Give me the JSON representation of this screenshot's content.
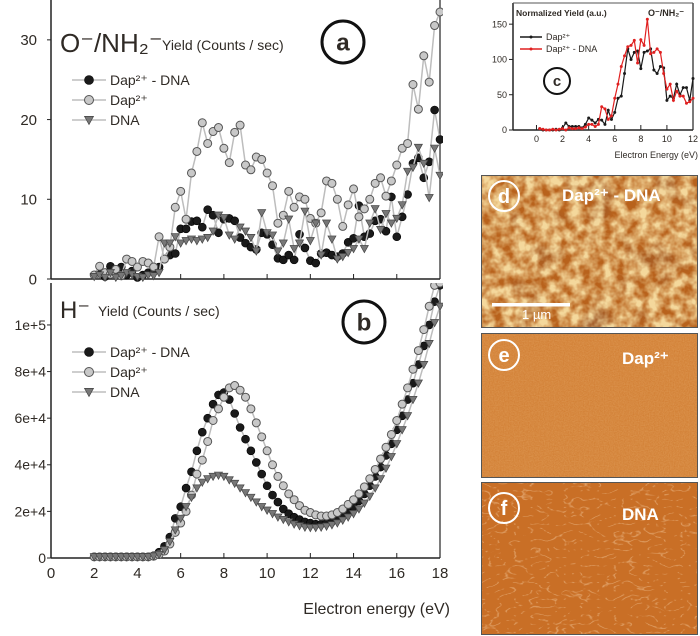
{
  "chart_data": [
    {
      "id": "a",
      "type": "scatter",
      "panel_label": "a",
      "title": "O⁻/NH₂⁻",
      "ylabel": "Yield (Counts / sec)",
      "xlim": [
        0,
        18
      ],
      "ylim": [
        0,
        35
      ],
      "yticks": [
        0,
        10,
        20,
        30
      ],
      "ytick_labels": [
        "0",
        "10",
        "20",
        "30"
      ],
      "legend_position": "upper-left",
      "x": [
        2,
        2.25,
        2.5,
        2.75,
        3,
        3.25,
        3.5,
        3.75,
        4,
        4.25,
        4.5,
        4.75,
        5,
        5.25,
        5.5,
        5.75,
        6,
        6.25,
        6.5,
        6.75,
        7,
        7.25,
        7.5,
        7.75,
        8,
        8.25,
        8.5,
        8.75,
        9,
        9.25,
        9.5,
        9.75,
        10,
        10.25,
        10.5,
        10.75,
        11,
        11.25,
        11.5,
        11.75,
        12,
        12.25,
        12.5,
        12.75,
        13,
        13.25,
        13.5,
        13.75,
        14,
        14.25,
        14.5,
        14.75,
        15,
        15.25,
        15.5,
        15.75,
        16,
        16.25,
        16.5,
        16.75,
        17,
        17.25,
        17.5,
        17.75,
        18
      ],
      "series": [
        {
          "name": "Dap²⁺ - DNA",
          "marker": "filled-circle",
          "color": "#1a1a1a",
          "values": [
            0.5,
            0.8,
            0.3,
            1.6,
            0.6,
            1.5,
            0.5,
            1.0,
            0.2,
            0.5,
            0.8,
            1.0,
            1.5,
            2.5,
            3.0,
            3.2,
            6.3,
            6.3,
            7.2,
            7.3,
            6.5,
            8.7,
            8.0,
            5.8,
            7.5,
            7.6,
            7.3,
            5.2,
            4.5,
            4.0,
            3.7,
            5.8,
            5.6,
            4.3,
            2.6,
            2.4,
            3.0,
            2.4,
            5.6,
            3.9,
            2.3,
            2.0,
            3.2,
            3.3,
            3.0,
            2.8,
            3.2,
            4.6,
            5.1,
            9.2,
            5.3,
            5.7,
            7.3,
            7.5,
            6.0,
            10.3,
            5.3,
            7.8,
            10.6,
            14.5,
            15.2,
            12.7,
            14.7,
            21.2,
            17.5
          ]
        },
        {
          "name": "Dap²⁺",
          "marker": "open-circle",
          "color": "#c8c8c8",
          "values": [
            0.5,
            1.6,
            0.8,
            0.6,
            1.2,
            0.4,
            2.5,
            2.2,
            1.5,
            2.2,
            2.0,
            1.5,
            5.3,
            2.5,
            4.0,
            9.0,
            11.0,
            7.5,
            13.3,
            16.0,
            19.6,
            17.0,
            18.5,
            19.0,
            16.4,
            14.6,
            18.4,
            19.3,
            14.3,
            13.7,
            15.3,
            15.0,
            13.3,
            11.7,
            7.0,
            8.0,
            11.0,
            9.0,
            10.3,
            10.0,
            7.6,
            7.0,
            8.3,
            12.3,
            12.0,
            10.0,
            6.6,
            9.3,
            11.3,
            7.8,
            8.8,
            10.0,
            12.0,
            12.7,
            10.4,
            12.3,
            14.3,
            16.4,
            17.0,
            24.4,
            21.3,
            28.0,
            24.7,
            31.8,
            33.5
          ]
        },
        {
          "name": "DNA",
          "marker": "down-triangle",
          "color": "#777777",
          "values": [
            0.3,
            0.5,
            0.2,
            0.8,
            0.2,
            0.4,
            0.8,
            0.6,
            0.3,
            0.2,
            0.5,
            0.4,
            0.8,
            4.5,
            4.5,
            5.3,
            4.5,
            4.8,
            5.0,
            4.8,
            5.0,
            5.2,
            6.0,
            8.0,
            7.7,
            5.5,
            5.0,
            6.5,
            6.0,
            5.2,
            3.5,
            8.3,
            5.8,
            5.5,
            3.5,
            4.5,
            7.5,
            3.8,
            4.5,
            8.5,
            4.8,
            7.0,
            3.0,
            7.0,
            5.0,
            2.5,
            2.8,
            3.3,
            3.8,
            5.0,
            3.8,
            7.0,
            8.8,
            6.2,
            8.2,
            7.0,
            7.6,
            9.3,
            13.5,
            14.0,
            16.5,
            14.5,
            10.2,
            16.4,
            13.0
          ]
        }
      ]
    },
    {
      "id": "b",
      "type": "scatter",
      "panel_label": "b",
      "title": "H⁻",
      "ylabel": "Yield (Counts / sec)",
      "xlabel": "Electron energy (eV)",
      "xlim": [
        0,
        18
      ],
      "ylim": [
        0,
        118000
      ],
      "xticks": [
        0,
        2,
        4,
        6,
        8,
        10,
        12,
        14,
        16,
        18
      ],
      "xtick_labels": [
        "0",
        "2",
        "4",
        "6",
        "8",
        "10",
        "12",
        "14",
        "16",
        "18"
      ],
      "yticks": [
        0,
        20000,
        40000,
        60000,
        80000,
        100000
      ],
      "ytick_labels": [
        "0",
        "2e+4",
        "4e+4",
        "6e+4",
        "8e+4",
        "1e+5"
      ],
      "legend_position": "upper-left",
      "x": [
        2,
        2.25,
        2.5,
        2.75,
        3,
        3.25,
        3.5,
        3.75,
        4,
        4.25,
        4.5,
        4.75,
        5,
        5.25,
        5.5,
        5.75,
        6,
        6.25,
        6.5,
        6.75,
        7,
        7.25,
        7.5,
        7.75,
        8,
        8.25,
        8.5,
        8.75,
        9,
        9.25,
        9.5,
        9.75,
        10,
        10.25,
        10.5,
        10.75,
        11,
        11.25,
        11.5,
        11.75,
        12,
        12.25,
        12.5,
        12.75,
        13,
        13.25,
        13.5,
        13.75,
        14,
        14.25,
        14.5,
        14.75,
        15,
        15.25,
        15.5,
        15.75,
        16,
        16.25,
        16.5,
        16.75,
        17,
        17.25,
        17.5,
        17.75,
        18
      ],
      "series": [
        {
          "name": "Dap²⁺ - DNA",
          "marker": "filled-circle",
          "color": "#1a1a1a",
          "values": [
            500,
            500,
            500,
            500,
            500,
            500,
            500,
            500,
            500,
            500,
            500,
            1000,
            2500,
            5000,
            9000,
            17000,
            22000,
            30000,
            37000,
            46000,
            54000,
            60000,
            66000,
            70000,
            71000,
            68000,
            62000,
            56000,
            51000,
            46000,
            41000,
            36000,
            31000,
            27000,
            24000,
            21000,
            19000,
            17500,
            16500,
            15500,
            15000,
            14500,
            14500,
            15000,
            15500,
            16500,
            18000,
            20000,
            22000,
            24500,
            27500,
            31000,
            35000,
            39000,
            44000,
            49000,
            55000,
            61000,
            68000,
            75000,
            83000,
            91000,
            100000,
            110000,
            117000
          ]
        },
        {
          "name": "Dap²⁺",
          "marker": "open-circle",
          "color": "#c8c8c8",
          "values": [
            500,
            500,
            500,
            500,
            500,
            500,
            500,
            500,
            500,
            500,
            500,
            800,
            1500,
            3000,
            6000,
            11000,
            15000,
            20000,
            27000,
            36000,
            42000,
            50000,
            59000,
            64000,
            69000,
            73000,
            74000,
            72000,
            69000,
            64000,
            58000,
            52000,
            46000,
            40000,
            35000,
            31000,
            27500,
            25000,
            22500,
            20500,
            19500,
            18500,
            18000,
            18000,
            18500,
            19500,
            21000,
            23000,
            25000,
            27500,
            30500,
            34000,
            38000,
            42500,
            47500,
            53000,
            59000,
            66000,
            73000,
            81000,
            89000,
            98000,
            108000,
            117000,
            118000
          ]
        },
        {
          "name": "DNA",
          "marker": "down-triangle",
          "color": "#777777",
          "values": [
            500,
            500,
            500,
            500,
            500,
            500,
            500,
            500,
            500,
            500,
            500,
            800,
            1500,
            3500,
            7000,
            12000,
            17000,
            22000,
            26000,
            30000,
            32500,
            34000,
            35000,
            35500,
            35000,
            33500,
            32000,
            30000,
            28000,
            26000,
            24000,
            22000,
            20500,
            19000,
            17500,
            16500,
            15500,
            14500,
            13800,
            13200,
            13000,
            13000,
            13200,
            13600,
            14200,
            15000,
            16200,
            17500,
            19000,
            21000,
            23500,
            26500,
            30000,
            34000,
            38500,
            43500,
            49000,
            55000,
            61000,
            68000,
            75000,
            83000,
            92000,
            101000,
            108000
          ]
        }
      ]
    },
    {
      "id": "c",
      "type": "line",
      "panel_label": "c",
      "title": "O⁻/NH₂⁻",
      "ylabel": "Normalized Yield (a.u.)",
      "xlabel": "Electron Energy (eV)",
      "xlim": [
        -1.8,
        12
      ],
      "ylim": [
        0,
        180
      ],
      "xticks": [
        0,
        2,
        4,
        6,
        8,
        10,
        12
      ],
      "xtick_labels": [
        "0",
        "2",
        "4",
        "6",
        "8",
        "10",
        "12"
      ],
      "yticks": [
        0,
        50,
        100,
        150
      ],
      "ytick_labels": [
        "0",
        "50",
        "100",
        "150"
      ],
      "legend_position": "upper-left",
      "x": [
        0.25,
        0.5,
        0.75,
        1,
        1.25,
        1.5,
        1.75,
        2,
        2.25,
        2.5,
        2.75,
        3,
        3.25,
        3.5,
        3.75,
        4,
        4.25,
        4.5,
        4.75,
        5,
        5.25,
        5.5,
        5.75,
        6,
        6.25,
        6.5,
        6.75,
        7,
        7.25,
        7.5,
        7.75,
        8,
        8.25,
        8.5,
        8.75,
        9,
        9.25,
        9.5,
        9.75,
        10,
        10.25,
        10.5,
        10.75,
        11,
        11.25,
        11.5,
        11.75,
        12
      ],
      "series": [
        {
          "name": "Dap²⁺",
          "marker": "small-dot",
          "color": "#1a1a1a",
          "values": [
            2,
            0,
            0,
            0,
            0,
            1,
            0,
            3,
            10,
            5,
            5,
            5,
            5,
            3,
            8,
            17,
            14,
            10,
            15,
            14,
            8,
            28,
            15,
            25,
            45,
            48,
            80,
            115,
            100,
            110,
            112,
            87,
            110,
            112,
            115,
            85,
            80,
            90,
            88,
            42,
            48,
            45,
            65,
            50,
            60,
            60,
            42,
            73
          ]
        },
        {
          "name": "Dap²⁺ - DNA",
          "marker": "small-dot",
          "color": "#e02020",
          "values": [
            2,
            1,
            0,
            0,
            1,
            0,
            1,
            2,
            0,
            3,
            2,
            2,
            3,
            2,
            4,
            8,
            8,
            5,
            8,
            33,
            30,
            15,
            20,
            45,
            65,
            90,
            105,
            118,
            120,
            127,
            95,
            128,
            120,
            157,
            108,
            110,
            115,
            110,
            80,
            58,
            65,
            42,
            55,
            48,
            48,
            38,
            40,
            45
          ]
        }
      ]
    }
  ],
  "afm_panels": [
    {
      "label": "d",
      "title": "Dap²⁺ - DNA",
      "scalebar": "1 µm"
    },
    {
      "label": "e",
      "title": "Dap²⁺"
    },
    {
      "label": "f",
      "title": "DNA"
    }
  ]
}
